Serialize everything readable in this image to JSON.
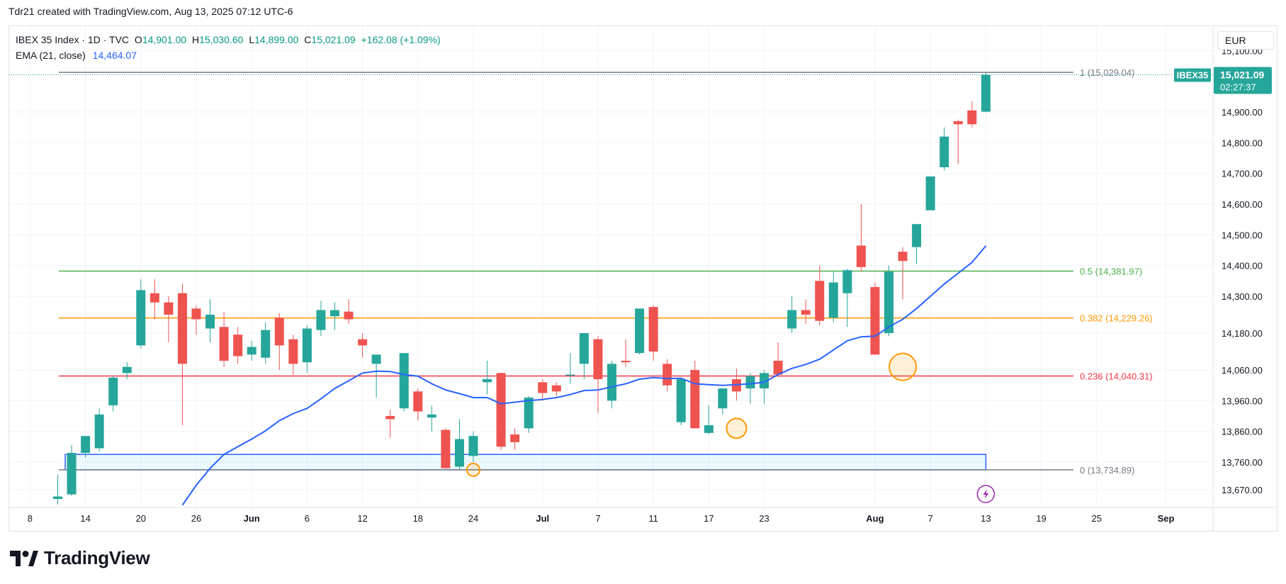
{
  "header": {
    "user": "Tdr21",
    "attribution": "created with TradingView.com,",
    "datetime": "Aug 13, 2025 07:12 UTC-6"
  },
  "legend": {
    "symbol": "IBEX 35 Index · 1D · TVC",
    "o_label": "O",
    "o_value": "14,901.00",
    "h_label": "H",
    "h_value": "15,030.60",
    "l_label": "L",
    "l_value": "14,899.00",
    "c_label": "C",
    "c_value": "15,021.09",
    "change": "+162.08 (+1.09%)",
    "ema_label": "EMA (21, close)",
    "ema_value": "14,464.07"
  },
  "currency": "EUR",
  "price_tag": {
    "symbol": "IBEX35",
    "price": "15,021.09",
    "countdown": "02:27:37"
  },
  "brand": "TradingView",
  "colors": {
    "up": "#26a69a",
    "down": "#ef5350",
    "ema": "#2962ff",
    "fib_1": "#787b86",
    "fib_05": "#4caf50",
    "fib_0382": "#ff9800",
    "fib_0236": "#f23645",
    "fib_0": "#787b86",
    "box": "#2962ff",
    "marker": "#ff9800",
    "bolt": "#9c27b0"
  },
  "chart_data": {
    "type": "candlestick",
    "y_ticks": [
      13670,
      13760,
      13860,
      13960,
      14060,
      14180,
      14300,
      14400,
      14500,
      14600,
      14700,
      14800,
      14900,
      15100
    ],
    "y_tick_labels": [
      "13,670.00",
      "13,760.00",
      "13,860.00",
      "13,960.00",
      "14,060.00",
      "14,180.00",
      "14,300.00",
      "14,400.00",
      "14,500.00",
      "14,600.00",
      "14,700.00",
      "14,800.00",
      "14,900.00",
      "15,100.00"
    ],
    "x_ticks": [
      {
        "label": "8",
        "idx": -2,
        "bold": false
      },
      {
        "label": "14",
        "idx": 2,
        "bold": false
      },
      {
        "label": "20",
        "idx": 6,
        "bold": false
      },
      {
        "label": "26",
        "idx": 10,
        "bold": false
      },
      {
        "label": "Jun",
        "idx": 14,
        "bold": true
      },
      {
        "label": "6",
        "idx": 18,
        "bold": false
      },
      {
        "label": "12",
        "idx": 22,
        "bold": false
      },
      {
        "label": "18",
        "idx": 26,
        "bold": false
      },
      {
        "label": "24",
        "idx": 30,
        "bold": false
      },
      {
        "label": "Jul",
        "idx": 35,
        "bold": true
      },
      {
        "label": "7",
        "idx": 39,
        "bold": false
      },
      {
        "label": "11",
        "idx": 43,
        "bold": false
      },
      {
        "label": "17",
        "idx": 47,
        "bold": false
      },
      {
        "label": "23",
        "idx": 51,
        "bold": false
      },
      {
        "label": "Aug",
        "idx": 59,
        "bold": true
      },
      {
        "label": "7",
        "idx": 63,
        "bold": false
      },
      {
        "label": "13",
        "idx": 67,
        "bold": false
      },
      {
        "label": "19",
        "idx": 71,
        "bold": false
      },
      {
        "label": "25",
        "idx": 75,
        "bold": false
      },
      {
        "label": "Sep",
        "idx": 80,
        "bold": true
      }
    ],
    "candles": [
      {
        "o": 13640,
        "h": 13720,
        "l": 13622,
        "c": 13648
      },
      {
        "o": 13655,
        "h": 13815,
        "l": 13650,
        "c": 13790
      },
      {
        "o": 13790,
        "h": 13845,
        "l": 13775,
        "c": 13845
      },
      {
        "o": 13805,
        "h": 13935,
        "l": 13795,
        "c": 13915
      },
      {
        "o": 13945,
        "h": 14040,
        "l": 13925,
        "c": 14035
      },
      {
        "o": 14050,
        "h": 14085,
        "l": 14030,
        "c": 14070
      },
      {
        "o": 14140,
        "h": 14355,
        "l": 14130,
        "c": 14320
      },
      {
        "o": 14310,
        "h": 14355,
        "l": 14225,
        "c": 14280
      },
      {
        "o": 14280,
        "h": 14300,
        "l": 14150,
        "c": 14240
      },
      {
        "o": 14310,
        "h": 14340,
        "l": 13880,
        "c": 14080
      },
      {
        "o": 14260,
        "h": 14270,
        "l": 14175,
        "c": 14225
      },
      {
        "o": 14195,
        "h": 14290,
        "l": 14150,
        "c": 14240
      },
      {
        "o": 14200,
        "h": 14250,
        "l": 14070,
        "c": 14090
      },
      {
        "o": 14175,
        "h": 14200,
        "l": 14080,
        "c": 14105
      },
      {
        "o": 14110,
        "h": 14155,
        "l": 14090,
        "c": 14135
      },
      {
        "o": 14100,
        "h": 14215,
        "l": 14080,
        "c": 14190
      },
      {
        "o": 14230,
        "h": 14245,
        "l": 14060,
        "c": 14140
      },
      {
        "o": 14160,
        "h": 14175,
        "l": 14045,
        "c": 14080
      },
      {
        "o": 14085,
        "h": 14205,
        "l": 14050,
        "c": 14195
      },
      {
        "o": 14190,
        "h": 14285,
        "l": 14170,
        "c": 14255
      },
      {
        "o": 14235,
        "h": 14280,
        "l": 14190,
        "c": 14255
      },
      {
        "o": 14250,
        "h": 14290,
        "l": 14210,
        "c": 14225
      },
      {
        "o": 14160,
        "h": 14180,
        "l": 14100,
        "c": 14140
      },
      {
        "o": 14080,
        "h": 14110,
        "l": 13970,
        "c": 14110
      },
      {
        "o": 13910,
        "h": 13930,
        "l": 13840,
        "c": 13900
      },
      {
        "o": 13935,
        "h": 14115,
        "l": 13925,
        "c": 14115
      },
      {
        "o": 13990,
        "h": 14000,
        "l": 13895,
        "c": 13925
      },
      {
        "o": 13905,
        "h": 13945,
        "l": 13860,
        "c": 13915
      },
      {
        "o": 13865,
        "h": 13870,
        "l": 13740,
        "c": 13740
      },
      {
        "o": 13745,
        "h": 13900,
        "l": 13735,
        "c": 13835
      },
      {
        "o": 13780,
        "h": 13860,
        "l": 13760,
        "c": 13845
      },
      {
        "o": 14020,
        "h": 14090,
        "l": 13980,
        "c": 14030
      },
      {
        "o": 14050,
        "h": 14050,
        "l": 13800,
        "c": 13810
      },
      {
        "o": 13850,
        "h": 13870,
        "l": 13800,
        "c": 13825
      },
      {
        "o": 13870,
        "h": 13975,
        "l": 13855,
        "c": 13970
      },
      {
        "o": 14020,
        "h": 14030,
        "l": 13960,
        "c": 13985
      },
      {
        "o": 14010,
        "h": 14020,
        "l": 13975,
        "c": 13990
      },
      {
        "o": 14045,
        "h": 14115,
        "l": 14015,
        "c": 14045
      },
      {
        "o": 14080,
        "h": 14180,
        "l": 14030,
        "c": 14180
      },
      {
        "o": 14160,
        "h": 14170,
        "l": 13920,
        "c": 14030
      },
      {
        "o": 13960,
        "h": 14090,
        "l": 13935,
        "c": 14080
      },
      {
        "o": 14090,
        "h": 14160,
        "l": 14070,
        "c": 14085
      },
      {
        "o": 14115,
        "h": 14260,
        "l": 14110,
        "c": 14260
      },
      {
        "o": 14265,
        "h": 14270,
        "l": 14090,
        "c": 14120
      },
      {
        "o": 14080,
        "h": 14095,
        "l": 13990,
        "c": 14010
      },
      {
        "o": 13890,
        "h": 14035,
        "l": 13880,
        "c": 14030
      },
      {
        "o": 14060,
        "h": 14090,
        "l": 13870,
        "c": 13870
      },
      {
        "o": 13855,
        "h": 13945,
        "l": 13850,
        "c": 13880
      },
      {
        "o": 13935,
        "h": 14000,
        "l": 13915,
        "c": 14000
      },
      {
        "o": 14030,
        "h": 14065,
        "l": 13960,
        "c": 13990
      },
      {
        "o": 14000,
        "h": 14050,
        "l": 13950,
        "c": 14040
      },
      {
        "o": 14000,
        "h": 14060,
        "l": 13950,
        "c": 14050
      },
      {
        "o": 14090,
        "h": 14150,
        "l": 14050,
        "c": 14045
      },
      {
        "o": 14195,
        "h": 14300,
        "l": 14180,
        "c": 14255
      },
      {
        "o": 14255,
        "h": 14290,
        "l": 14210,
        "c": 14240
      },
      {
        "o": 14350,
        "h": 14400,
        "l": 14205,
        "c": 14220
      },
      {
        "o": 14230,
        "h": 14380,
        "l": 14215,
        "c": 14345
      },
      {
        "o": 14310,
        "h": 14390,
        "l": 14200,
        "c": 14385
      },
      {
        "o": 14465,
        "h": 14600,
        "l": 14380,
        "c": 14395
      },
      {
        "o": 14330,
        "h": 14345,
        "l": 14110,
        "c": 14110
      },
      {
        "o": 14180,
        "h": 14400,
        "l": 14170,
        "c": 14380
      },
      {
        "o": 14445,
        "h": 14460,
        "l": 14290,
        "c": 14415
      },
      {
        "o": 14460,
        "h": 14530,
        "l": 14405,
        "c": 14535
      },
      {
        "o": 14580,
        "h": 14690,
        "l": 14580,
        "c": 14690
      },
      {
        "o": 14720,
        "h": 14850,
        "l": 14710,
        "c": 14820
      },
      {
        "o": 14870,
        "h": 14875,
        "l": 14730,
        "c": 14860
      },
      {
        "o": 14905,
        "h": 14935,
        "l": 14850,
        "c": 14860
      },
      {
        "o": 14901,
        "h": 15030.6,
        "l": 14899,
        "c": 15021.09
      }
    ],
    "ema": [
      {
        "idx": 9,
        "v": 13620
      },
      {
        "idx": 10,
        "v": 13685
      },
      {
        "idx": 11,
        "v": 13740
      },
      {
        "idx": 12,
        "v": 13785
      },
      {
        "idx": 13,
        "v": 13810
      },
      {
        "idx": 14,
        "v": 13835
      },
      {
        "idx": 15,
        "v": 13862
      },
      {
        "idx": 16,
        "v": 13895
      },
      {
        "idx": 17,
        "v": 13918
      },
      {
        "idx": 18,
        "v": 13935
      },
      {
        "idx": 19,
        "v": 13966
      },
      {
        "idx": 20,
        "v": 14000
      },
      {
        "idx": 21,
        "v": 14025
      },
      {
        "idx": 22,
        "v": 14050
      },
      {
        "idx": 23,
        "v": 14056
      },
      {
        "idx": 24,
        "v": 14055
      },
      {
        "idx": 25,
        "v": 14045
      },
      {
        "idx": 26,
        "v": 14040
      },
      {
        "idx": 27,
        "v": 14015
      },
      {
        "idx": 28,
        "v": 13995
      },
      {
        "idx": 29,
        "v": 13983
      },
      {
        "idx": 30,
        "v": 13970
      },
      {
        "idx": 31,
        "v": 13970
      },
      {
        "idx": 32,
        "v": 13950
      },
      {
        "idx": 33,
        "v": 13955
      },
      {
        "idx": 34,
        "v": 13960
      },
      {
        "idx": 35,
        "v": 13964
      },
      {
        "idx": 36,
        "v": 13970
      },
      {
        "idx": 37,
        "v": 13980
      },
      {
        "idx": 38,
        "v": 13993
      },
      {
        "idx": 39,
        "v": 13995
      },
      {
        "idx": 40,
        "v": 14005
      },
      {
        "idx": 41,
        "v": 14015
      },
      {
        "idx": 42,
        "v": 14030
      },
      {
        "idx": 43,
        "v": 14035
      },
      {
        "idx": 44,
        "v": 14032
      },
      {
        "idx": 45,
        "v": 14033
      },
      {
        "idx": 46,
        "v": 14015
      },
      {
        "idx": 47,
        "v": 14012
      },
      {
        "idx": 48,
        "v": 14010
      },
      {
        "idx": 49,
        "v": 14012
      },
      {
        "idx": 50,
        "v": 14015
      },
      {
        "idx": 51,
        "v": 14020
      },
      {
        "idx": 52,
        "v": 14045
      },
      {
        "idx": 53,
        "v": 14065
      },
      {
        "idx": 54,
        "v": 14078
      },
      {
        "idx": 55,
        "v": 14095
      },
      {
        "idx": 56,
        "v": 14125
      },
      {
        "idx": 57,
        "v": 14155
      },
      {
        "idx": 58,
        "v": 14168
      },
      {
        "idx": 59,
        "v": 14170
      },
      {
        "idx": 60,
        "v": 14200
      },
      {
        "idx": 61,
        "v": 14225
      },
      {
        "idx": 62,
        "v": 14260
      },
      {
        "idx": 63,
        "v": 14300
      },
      {
        "idx": 64,
        "v": 14340
      },
      {
        "idx": 65,
        "v": 14375
      },
      {
        "idx": 66,
        "v": 14410
      },
      {
        "idx": 67,
        "v": 14464
      }
    ],
    "fib_levels": [
      {
        "ratio_label": "1",
        "price": 15029.04,
        "label": "1 (15,029.04)",
        "color": "#787b86"
      },
      {
        "ratio_label": "0.5",
        "price": 14381.97,
        "label": "0.5 (14,381.97)",
        "color": "#4caf50"
      },
      {
        "ratio_label": "0.382",
        "price": 14229.26,
        "label": "0.382 (14,229.26)",
        "color": "#ff9800"
      },
      {
        "ratio_label": "0.236",
        "price": 14040.31,
        "label": "0.236 (14,040.31)",
        "color": "#f23645"
      },
      {
        "ratio_label": "0",
        "price": 13734.89,
        "label": "0 (13,734.89)",
        "color": "#787b86"
      }
    ],
    "box": {
      "price_top": 13785,
      "price_bottom": 13735,
      "idx_start": 1,
      "idx_end": 67
    },
    "markers": [
      {
        "idx": 30,
        "price": 13735,
        "size": "small"
      },
      {
        "idx": 49,
        "price": 13870,
        "size": "medium"
      },
      {
        "idx": 61,
        "price": 14070,
        "size": "large"
      }
    ],
    "bolt_idx": 67,
    "current_price": 15021.09
  }
}
